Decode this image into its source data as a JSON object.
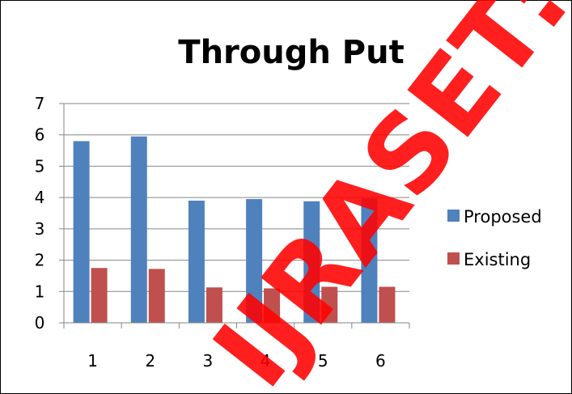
{
  "chart_data": {
    "type": "bar",
    "title": "Through Put",
    "xlabel": "",
    "ylabel": "",
    "categories": [
      "1",
      "2",
      "3",
      "4",
      "5",
      "6"
    ],
    "series": [
      {
        "name": "Proposed",
        "color": "#4f81bd",
        "values": [
          5.8,
          5.95,
          3.9,
          3.95,
          3.88,
          3.97
        ]
      },
      {
        "name": "Existing",
        "color": "#c0504d",
        "values": [
          1.75,
          1.72,
          1.13,
          1.1,
          1.15,
          1.15
        ]
      }
    ],
    "ylim": [
      0,
      7
    ],
    "yticks": [
      "0",
      "1",
      "2",
      "3",
      "4",
      "5",
      "6",
      "7"
    ],
    "grid": true,
    "legend": "right"
  },
  "watermark": {
    "text": "IJRASET: IJ",
    "color": "#ff0000"
  }
}
